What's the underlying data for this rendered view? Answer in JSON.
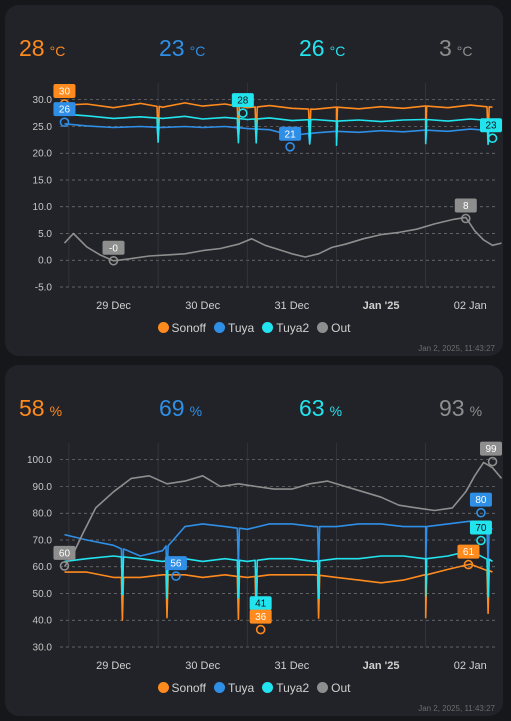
{
  "temperature": {
    "stats": [
      {
        "value": "28",
        "unit": "°C",
        "color": "#ff8a1e"
      },
      {
        "value": "23",
        "unit": "°C",
        "color": "#2f8fe6"
      },
      {
        "value": "26",
        "unit": "°C",
        "color": "#22e4ee"
      },
      {
        "value": "3",
        "unit": "°C",
        "color": "#8e8e8e"
      }
    ],
    "timestamp": "Jan 2, 2025, 11:43:27"
  },
  "humidity": {
    "stats": [
      {
        "value": "58",
        "unit": "%",
        "color": "#ff8a1e"
      },
      {
        "value": "69",
        "unit": "%",
        "color": "#2f8fe6"
      },
      {
        "value": "63",
        "unit": "%",
        "color": "#22e4ee"
      },
      {
        "value": "93",
        "unit": "%",
        "color": "#8e8e8e"
      }
    ],
    "timestamp": "Jan 2, 2025, 11:43:27"
  },
  "chart_data": [
    {
      "type": "line",
      "ylim": [
        -5,
        32
      ],
      "yticks": [
        "-5.0",
        "0.0",
        "5.0",
        "10.0",
        "15.0",
        "20.0",
        "25.0",
        "30.0"
      ],
      "ytick_values": [
        -5,
        0,
        5,
        10,
        15,
        20,
        25,
        30
      ],
      "xlim": [
        -0.6,
        4.3
      ],
      "xticks": [
        {
          "label": "29 Dec",
          "x": 0,
          "bold": false
        },
        {
          "label": "30 Dec",
          "x": 1,
          "bold": false
        },
        {
          "label": "31 Dec",
          "x": 2,
          "bold": false
        },
        {
          "label": "Jan '25",
          "x": 3,
          "bold": true
        },
        {
          "label": "02 Jan",
          "x": 4,
          "bold": false
        }
      ],
      "grid": true,
      "legend_position": "bottom",
      "legend": [
        "Sonoff",
        "Tuya",
        "Tuya2",
        "Out"
      ],
      "series": [
        {
          "name": "Sonoff",
          "color": "#ff8a1e",
          "x": [
            -0.55,
            -0.3,
            0.0,
            0.3,
            0.55,
            0.8,
            1.0,
            1.25,
            1.5,
            1.75,
            2.0,
            2.25,
            2.5,
            2.75,
            3.0,
            3.25,
            3.5,
            3.75,
            4.0,
            4.25
          ],
          "y": [
            29.0,
            29.2,
            28.5,
            29.3,
            28.6,
            29.4,
            28.8,
            29.2,
            28.5,
            28.9,
            28.4,
            28.2,
            28.6,
            28.3,
            28.7,
            28.4,
            28.8,
            28.5,
            29.0,
            28.6
          ],
          "dips": [
            0.5,
            1.4,
            1.6,
            2.2,
            2.5,
            3.5,
            4.2
          ],
          "dip_depth": 5.5
        },
        {
          "name": "Tuya",
          "color": "#2f8fe6",
          "x": [
            -0.55,
            -0.3,
            0.0,
            0.3,
            0.55,
            0.8,
            1.0,
            1.25,
            1.5,
            1.75,
            2.0,
            2.25,
            2.5,
            2.75,
            3.0,
            3.25,
            3.5,
            3.75,
            4.0,
            4.25
          ],
          "y": [
            25.5,
            25.1,
            24.8,
            25.0,
            24.8,
            25.0,
            24.8,
            25.0,
            24.6,
            24.4,
            23.3,
            23.8,
            24.1,
            23.9,
            24.2,
            24.0,
            24.3,
            24.1,
            24.5,
            24.2
          ],
          "dips": [
            0.5,
            1.4,
            2.2,
            3.5
          ],
          "dip_depth": 2.0
        },
        {
          "name": "Tuya2",
          "color": "#22e4ee",
          "x": [
            -0.55,
            -0.3,
            0.0,
            0.3,
            0.55,
            0.8,
            1.0,
            1.25,
            1.5,
            1.75,
            2.0,
            2.25,
            2.5,
            2.75,
            3.0,
            3.25,
            3.5,
            3.75,
            4.0,
            4.25
          ],
          "y": [
            27.3,
            27.0,
            26.5,
            26.8,
            26.5,
            26.9,
            26.4,
            26.7,
            26.3,
            26.6,
            26.1,
            26.3,
            26.0,
            26.2,
            25.9,
            26.2,
            26.3,
            26.0,
            26.4,
            26.1
          ],
          "dips": [
            0.5,
            1.4,
            1.6,
            2.2,
            2.5,
            3.5,
            4.2
          ],
          "dip_depth": 4.5
        },
        {
          "name": "Out",
          "color": "#8e8e8e",
          "x": [
            -0.55,
            -0.45,
            -0.3,
            -0.15,
            0.0,
            0.2,
            0.4,
            0.6,
            0.8,
            1.0,
            1.2,
            1.4,
            1.55,
            1.7,
            1.85,
            2.0,
            2.15,
            2.3,
            2.45,
            2.6,
            2.8,
            3.0,
            3.2,
            3.4,
            3.6,
            3.8,
            3.95,
            4.05,
            4.15,
            4.25,
            4.35
          ],
          "y": [
            3.2,
            5.0,
            2.5,
            1.0,
            -0.1,
            0.3,
            0.8,
            1.0,
            1.2,
            1.8,
            2.2,
            3.0,
            4.0,
            2.8,
            2.0,
            1.2,
            0.6,
            1.2,
            2.4,
            3.0,
            4.0,
            4.8,
            5.2,
            5.8,
            6.8,
            7.6,
            8.0,
            5.5,
            3.8,
            2.8,
            3.2
          ]
        }
      ],
      "labels": [
        {
          "text": "30",
          "series": "Sonoff",
          "x": -0.55,
          "y": 29.2
        },
        {
          "text": "26",
          "series": "Tuya",
          "x": -0.55,
          "y": 25.8
        },
        {
          "text": "28",
          "series": "Tuya2",
          "x": 1.45,
          "y": 27.5
        },
        {
          "text": "21",
          "series": "Tuya",
          "x": 1.98,
          "y": 21.2
        },
        {
          "text": "-0",
          "series": "Out",
          "x": 0.0,
          "y": -0.1
        },
        {
          "text": "8",
          "series": "Out",
          "x": 3.95,
          "y": 7.8
        },
        {
          "text": "23",
          "series": "Tuya2",
          "x": 4.25,
          "y": 22.8
        }
      ]
    },
    {
      "type": "line",
      "ylim": [
        30,
        104
      ],
      "yticks": [
        "30.0",
        "40.0",
        "50.0",
        "60.0",
        "70.0",
        "80.0",
        "90.0",
        "100.0"
      ],
      "ytick_values": [
        30,
        40,
        50,
        60,
        70,
        80,
        90,
        100
      ],
      "xlim": [
        -0.6,
        4.3
      ],
      "xticks": [
        {
          "label": "29 Dec",
          "x": 0,
          "bold": false
        },
        {
          "label": "30 Dec",
          "x": 1,
          "bold": false
        },
        {
          "label": "31 Dec",
          "x": 2,
          "bold": false
        },
        {
          "label": "Jan '25",
          "x": 3,
          "bold": true
        },
        {
          "label": "02 Jan",
          "x": 4,
          "bold": false
        }
      ],
      "grid": true,
      "legend_position": "bottom",
      "legend": [
        "Sonoff",
        "Tuya",
        "Tuya2",
        "Out"
      ],
      "series": [
        {
          "name": "Sonoff",
          "color": "#ff8a1e",
          "x": [
            -0.55,
            -0.3,
            0.0,
            0.3,
            0.55,
            0.8,
            1.0,
            1.25,
            1.5,
            1.75,
            2.0,
            2.25,
            2.5,
            2.75,
            3.0,
            3.25,
            3.5,
            3.75,
            4.0,
            4.25
          ],
          "y": [
            58,
            58,
            56,
            56,
            57,
            57,
            56,
            57,
            56,
            57,
            57,
            57,
            56,
            55,
            54,
            55,
            57,
            59,
            61,
            58
          ],
          "dips": [
            0.1,
            0.6,
            1.4,
            1.6,
            2.3,
            3.5,
            4.2
          ],
          "dip_depth": 16
        },
        {
          "name": "Tuya",
          "color": "#2f8fe6",
          "x": [
            -0.55,
            -0.3,
            0.0,
            0.3,
            0.55,
            0.8,
            1.0,
            1.25,
            1.5,
            1.75,
            2.0,
            2.25,
            2.5,
            2.75,
            3.0,
            3.25,
            3.5,
            3.75,
            4.0,
            4.25
          ],
          "y": [
            72,
            70,
            68,
            64,
            66,
            75,
            76,
            75,
            74,
            76,
            76,
            75,
            75,
            76,
            76,
            75,
            75,
            76,
            77,
            74
          ],
          "dips": [
            0.1,
            0.6,
            1.4,
            2.3,
            3.5,
            4.2
          ],
          "dip_depth": 14
        },
        {
          "name": "Tuya2",
          "color": "#22e4ee",
          "x": [
            -0.55,
            -0.3,
            0.0,
            0.3,
            0.55,
            0.8,
            1.0,
            1.25,
            1.5,
            1.75,
            2.0,
            2.25,
            2.5,
            2.75,
            3.0,
            3.25,
            3.5,
            3.75,
            4.0,
            4.25
          ],
          "y": [
            62,
            63,
            64,
            63,
            62,
            63,
            62,
            63,
            62,
            63,
            63,
            62,
            63,
            63,
            64,
            64,
            63,
            64,
            66,
            62
          ],
          "dips": [
            0.1,
            0.6,
            1.4,
            1.6,
            2.3,
            3.5,
            4.2
          ],
          "dip_depth": 14
        },
        {
          "name": "Out",
          "color": "#8e8e8e",
          "x": [
            -0.55,
            -0.45,
            -0.35,
            -0.2,
            0.0,
            0.2,
            0.4,
            0.6,
            0.8,
            1.0,
            1.2,
            1.4,
            1.6,
            1.8,
            2.0,
            2.2,
            2.4,
            2.6,
            2.8,
            3.0,
            3.2,
            3.4,
            3.6,
            3.8,
            3.95,
            4.05,
            4.15,
            4.25,
            4.35
          ],
          "y": [
            60,
            65,
            72,
            82,
            88,
            93,
            94,
            91,
            92,
            94,
            90,
            91,
            90,
            89,
            89,
            91,
            92,
            90,
            88,
            86,
            83,
            82,
            81,
            82,
            88,
            94,
            99,
            97,
            93
          ]
        }
      ],
      "labels": [
        {
          "text": "60",
          "series": "Out",
          "x": -0.55,
          "y": 60.3
        },
        {
          "text": "56",
          "series": "Tuya",
          "x": 0.7,
          "y": 56.5
        },
        {
          "text": "41",
          "series": "Tuya2",
          "x": 1.65,
          "y": 41.5
        },
        {
          "text": "36",
          "series": "Sonoff",
          "x": 1.65,
          "y": 36.5
        },
        {
          "text": "61",
          "series": "Sonoff",
          "x": 3.98,
          "y": 60.8
        },
        {
          "text": "70",
          "series": "Tuya2",
          "x": 4.12,
          "y": 69.8
        },
        {
          "text": "80",
          "series": "Tuya",
          "x": 4.12,
          "y": 80.2
        },
        {
          "text": "99",
          "series": "Out",
          "x": 4.25,
          "y": 99.3
        }
      ]
    }
  ]
}
